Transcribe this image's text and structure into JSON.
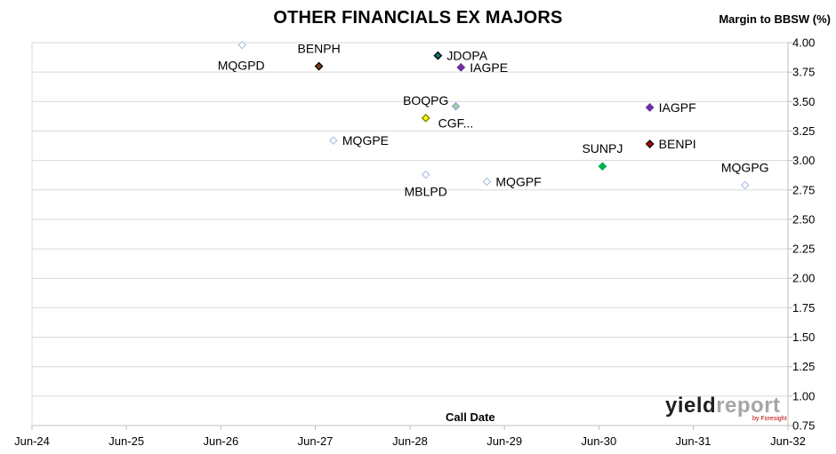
{
  "chart_data": {
    "type": "scatter",
    "title": "OTHER FINANCIALS EX MAJORS",
    "ylabel": "Margin to BBSW (%)",
    "xlabel": "Call Date",
    "ylim": [
      0.75,
      4.0
    ],
    "yticks": [
      0.75,
      1.0,
      1.25,
      1.5,
      1.75,
      2.0,
      2.25,
      2.5,
      2.75,
      3.0,
      3.25,
      3.5,
      3.75,
      4.0
    ],
    "ytick_labels": [
      "0.75",
      "1.00",
      "1.25",
      "1.50",
      "1.75",
      "2.00",
      "2.25",
      "2.50",
      "2.75",
      "3.00",
      "3.25",
      "3.50",
      "3.75",
      "4.00"
    ],
    "xlim": [
      "2024-06-01",
      "2032-06-01"
    ],
    "xticks": [
      "2024-06-01",
      "2025-06-01",
      "2026-06-01",
      "2027-06-01",
      "2028-06-01",
      "2029-06-01",
      "2030-06-01",
      "2031-06-01",
      "2032-06-01"
    ],
    "xtick_labels": [
      "Jun-24",
      "Jun-25",
      "Jun-26",
      "Jun-27",
      "Jun-28",
      "Jun-29",
      "Jun-30",
      "Jun-31",
      "Jun-32"
    ],
    "grid": "horizontal",
    "points": [
      {
        "label": "MQGPD",
        "x": "2026-08-22",
        "y": 3.98,
        "fill": "#ffffff",
        "stroke": "#b4c7e7",
        "label_pos": "below-left"
      },
      {
        "label": "BENPH",
        "x": "2027-06-15",
        "y": 3.8,
        "fill": "#843c0c",
        "stroke": "#000000",
        "label_pos": "above"
      },
      {
        "label": "JDOPA",
        "x": "2028-09-17",
        "y": 3.89,
        "fill": "#0a7a7a",
        "stroke": "#000000",
        "label_pos": "right"
      },
      {
        "label": "IAGPE",
        "x": "2028-12-15",
        "y": 3.79,
        "fill": "#7030a0",
        "stroke": "#7030a0",
        "label_pos": "right"
      },
      {
        "label": "BOQPG",
        "x": "2028-08-01",
        "y": 3.36,
        "fill": "#ffff00",
        "stroke": "#7f7f00",
        "label_pos": "above"
      },
      {
        "label": "CGF...",
        "x": "2028-11-25",
        "y": 3.46,
        "fill": "#a9d18e",
        "stroke": "#8faadc",
        "label_pos": "below"
      },
      {
        "label": "IAGPF",
        "x": "2030-12-15",
        "y": 3.45,
        "fill": "#7030a0",
        "stroke": "#7030a0",
        "label_pos": "right"
      },
      {
        "label": "MQGPE",
        "x": "2027-08-10",
        "y": 3.17,
        "fill": "#ffffff",
        "stroke": "#b4c7e7",
        "label_pos": "right"
      },
      {
        "label": "BENPI",
        "x": "2030-12-15",
        "y": 3.14,
        "fill": "#c00000",
        "stroke": "#000000",
        "label_pos": "right"
      },
      {
        "label": "SUNPJ",
        "x": "2030-06-15",
        "y": 2.95,
        "fill": "#00b050",
        "stroke": "#00b050",
        "label_pos": "above"
      },
      {
        "label": "MBLPD",
        "x": "2028-08-01",
        "y": 2.88,
        "fill": "#ffffff",
        "stroke": "#b4c7e7",
        "label_pos": "below"
      },
      {
        "label": "MQGPF",
        "x": "2029-03-25",
        "y": 2.82,
        "fill": "#ffffff",
        "stroke": "#b4c7e7",
        "label_pos": "right"
      },
      {
        "label": "MQGPG",
        "x": "2031-12-18",
        "y": 2.79,
        "fill": "#ffffff",
        "stroke": "#b4c7e7",
        "label_pos": "above"
      }
    ]
  },
  "branding": {
    "logo_main_a": "yield",
    "logo_main_b": "report",
    "logo_sub": "by Foresight"
  }
}
